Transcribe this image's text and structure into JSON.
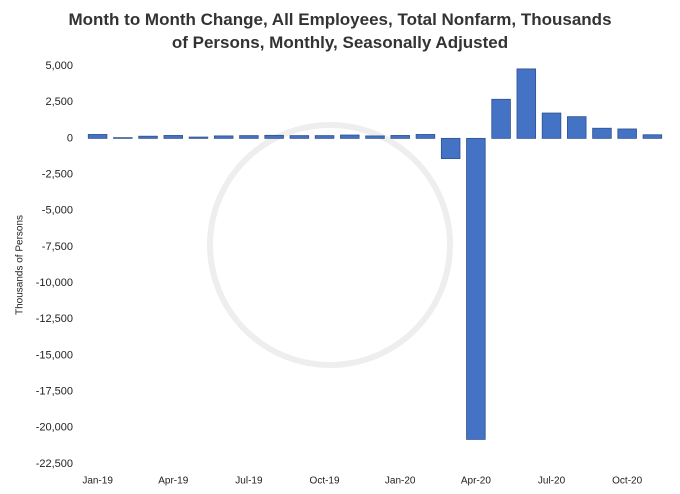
{
  "chart_data": {
    "type": "bar",
    "title": "Month to Month Change, All Employees, Total Nonfarm, Thousands of Persons, Monthly, Seasonally Adjusted",
    "y_label": "Thousands of Persons",
    "categories": [
      "Jan-19",
      null,
      null,
      "Apr-19",
      null,
      null,
      "Jul-19",
      null,
      null,
      "Oct-19",
      null,
      null,
      "Jan-20",
      null,
      null,
      "Apr-20",
      null,
      null,
      "Jul-20",
      null,
      null,
      "Oct-20",
      null
    ],
    "values": [
      270,
      50,
      150,
      200,
      90,
      170,
      190,
      210,
      190,
      190,
      230,
      170,
      200,
      270,
      -1400,
      -20800,
      2700,
      4800,
      1750,
      1500,
      700,
      650,
      250
    ],
    "color": "#4472c4",
    "ylim": [
      -22500,
      5000
    ],
    "yticks": [
      {
        "value": 5000,
        "label": "5,000"
      },
      {
        "value": 2500,
        "label": "2,500"
      },
      0,
      {
        "value": -2500,
        "label": "-2,500"
      },
      {
        "value": -5000,
        "label": "-5,000"
      },
      {
        "value": -7500,
        "label": "-7,500"
      },
      {
        "value": -10000,
        "label": "-10,000"
      },
      {
        "value": -12500,
        "label": "-12,500"
      },
      {
        "value": -15000,
        "label": "-15,000"
      },
      {
        "value": -17500,
        "label": "-17,500"
      },
      {
        "value": -20000,
        "label": "-20,000"
      },
      {
        "value": -22500,
        "label": "-22,500"
      }
    ],
    "grid": false
  }
}
